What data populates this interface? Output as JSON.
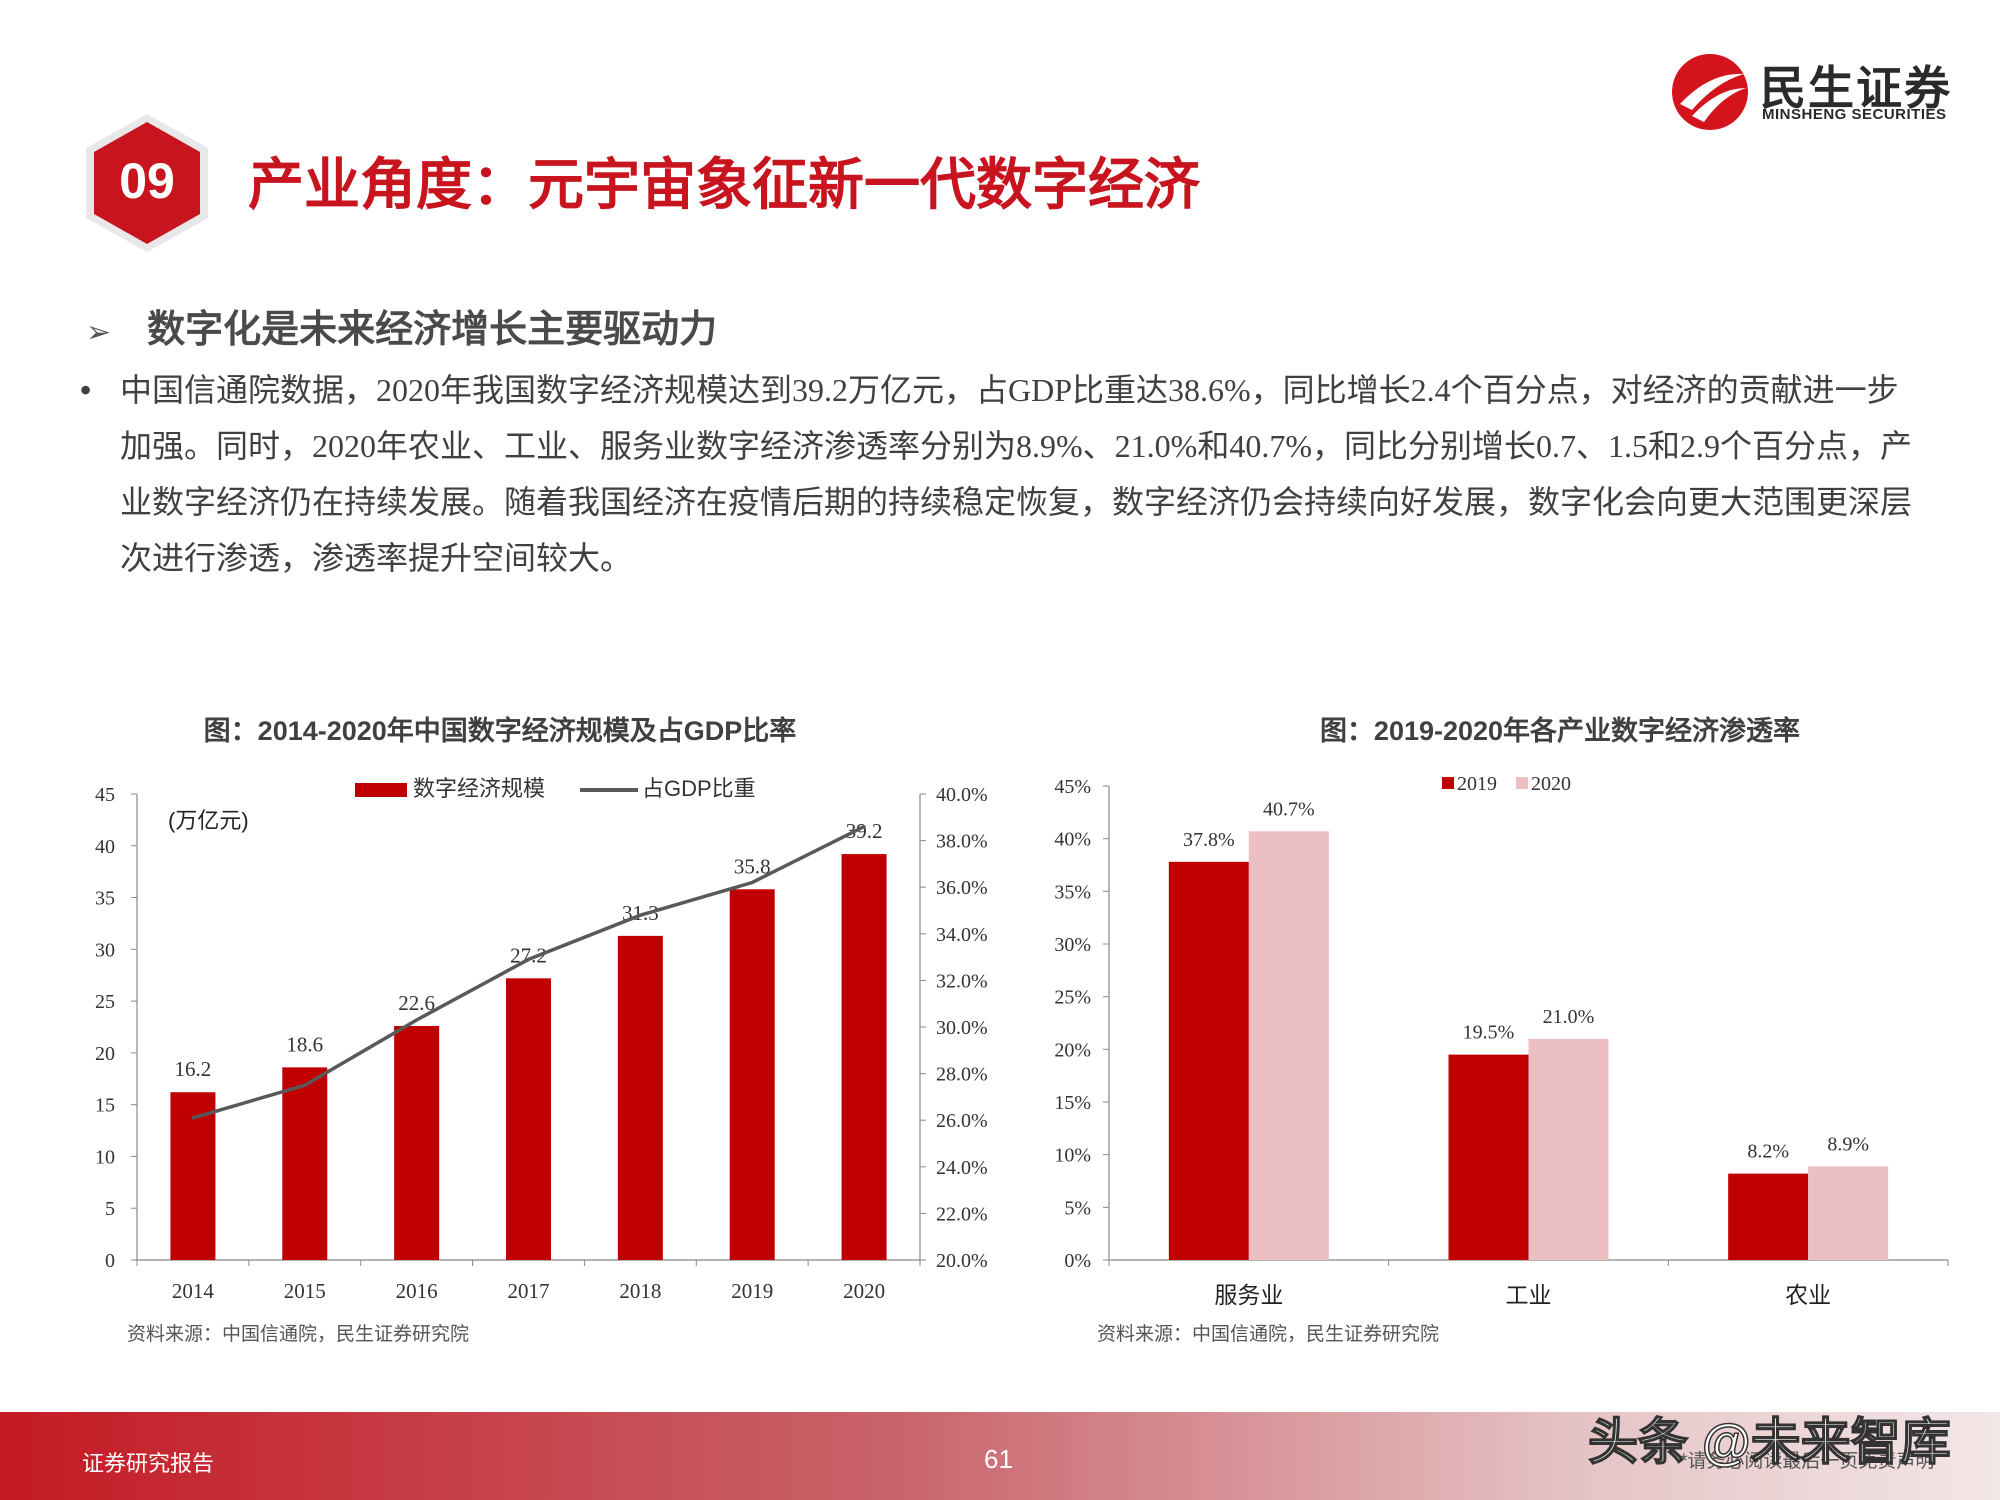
{
  "header": {
    "badge_number": "09",
    "title": "产业角度：元宇宙象征新一代数字经济",
    "logo_cn": "民生证券",
    "logo_en": "MINSHENG SECURITIES"
  },
  "subheading": {
    "arrow": "➢",
    "text": "数字化是未来经济增长主要驱动力"
  },
  "body": {
    "bullet": "•",
    "paragraph": "中国信通院数据，2020年我国数字经济规模达到39.2万亿元，占GDP比重达38.6%，同比增长2.4个百分点，对经济的贡献进一步加强。同时，2020年农业、工业、服务业数字经济渗透率分别为8.9%、21.0%和40.7%，同比分别增长0.7、1.5和2.9个百分点，产业数字经济仍在持续发展。随着我国经济在疫情后期的持续稳定恢复，数字经济仍会持续向好发展，数字化会向更大范围更深层次进行渗透，渗透率提升空间较大。"
  },
  "colors": {
    "brand_red": "#c8141e",
    "bar_dark_red": "#c00000",
    "bar_light_pink": "#ecc0c2",
    "line_gray": "#595959"
  },
  "chart_data": [
    {
      "type": "bar",
      "title": "图：2014-2020年中国数字经济规模及占GDP比率",
      "unit_label": "(万亿元)",
      "categories": [
        "2014",
        "2015",
        "2016",
        "2017",
        "2018",
        "2019",
        "2020"
      ],
      "series": [
        {
          "name": "数字经济规模",
          "type": "bar",
          "axis": "left",
          "values": [
            16.2,
            18.6,
            22.6,
            27.2,
            31.3,
            35.8,
            39.2
          ],
          "data_labels": [
            "16.2",
            "18.6",
            "22.6",
            "27.2",
            "31.3",
            "35.8",
            "39.2"
          ]
        },
        {
          "name": "占GDP比重",
          "type": "line",
          "axis": "right",
          "values": [
            26.1,
            27.5,
            30.3,
            32.9,
            34.8,
            36.2,
            38.6
          ]
        }
      ],
      "ylim_left": [
        0,
        45
      ],
      "yticks_left": [
        "0",
        "5",
        "10",
        "15",
        "20",
        "25",
        "30",
        "35",
        "40",
        "45"
      ],
      "ylim_right": [
        20,
        40
      ],
      "yticks_right": [
        "20.0%",
        "22.0%",
        "24.0%",
        "26.0%",
        "28.0%",
        "30.0%",
        "32.0%",
        "34.0%",
        "36.0%",
        "38.0%",
        "40.0%"
      ],
      "legend": "top-center",
      "grid": false,
      "source": "资料来源：中国信通院，民生证券研究院"
    },
    {
      "type": "bar",
      "title": "图：2019-2020年各产业数字经济渗透率",
      "categories": [
        "服务业",
        "工业",
        "农业"
      ],
      "series": [
        {
          "name": "2019",
          "values": [
            37.8,
            19.5,
            8.2
          ],
          "data_labels": [
            "37.8%",
            "19.5%",
            "8.2%"
          ]
        },
        {
          "name": "2020",
          "values": [
            40.7,
            21.0,
            8.9
          ],
          "data_labels": [
            "40.7%",
            "21.0%",
            "8.9%"
          ]
        }
      ],
      "ylim": [
        0,
        45
      ],
      "yticks": [
        "0%",
        "5%",
        "10%",
        "15%",
        "20%",
        "25%",
        "30%",
        "35%",
        "40%",
        "45%"
      ],
      "legend": "top-center",
      "grid": false,
      "source": "资料来源：中国信通院，民生证券研究院"
    }
  ],
  "footer": {
    "left_text": "证券研究报告",
    "page_number": "61",
    "disclaimer": "*请务必阅读最后一页免责声明",
    "watermark": "头条 @未来智库"
  }
}
